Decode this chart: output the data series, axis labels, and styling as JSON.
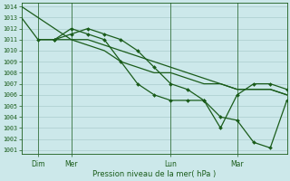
{
  "background_color": "#cce8ea",
  "grid_color": "#aacccc",
  "line_color": "#1a5c1a",
  "ylim": [
    1001,
    1014
  ],
  "yticks": [
    1001,
    1002,
    1003,
    1004,
    1005,
    1006,
    1007,
    1008,
    1009,
    1010,
    1011,
    1012,
    1013,
    1014
  ],
  "xlabel": "Pression niveau de la mer( hPa )",
  "xtick_labels": [
    "Dim",
    "Mer",
    "Lun",
    "Mar"
  ],
  "xtick_positions": [
    12,
    36,
    108,
    156
  ],
  "vline_positions": [
    12,
    36,
    108,
    156
  ],
  "xlim": [
    0,
    192
  ],
  "series": [
    {
      "x": [
        0,
        12,
        24,
        36,
        48,
        60,
        72,
        84,
        96,
        108,
        120,
        132,
        144,
        156,
        168,
        180,
        192
      ],
      "y": [
        1014,
        1013,
        1012,
        1011,
        1011,
        1010.5,
        1010,
        1009.5,
        1009,
        1008.5,
        1008,
        1007.5,
        1007,
        1006.5,
        1006.5,
        1006.5,
        1006
      ],
      "marker": false,
      "lw": 0.9
    },
    {
      "x": [
        0,
        12,
        24,
        36,
        48,
        60,
        72,
        84,
        96,
        108,
        120,
        132,
        144,
        156,
        168,
        180,
        192
      ],
      "y": [
        1013,
        1011,
        1011,
        1011,
        1010.5,
        1010,
        1009,
        1008.5,
        1008,
        1008,
        1007.5,
        1007,
        1007,
        1006.5,
        1006.5,
        1006.5,
        1006
      ],
      "marker": false,
      "lw": 0.9
    },
    {
      "x": [
        12,
        24,
        36,
        48,
        60,
        72,
        84,
        96,
        108,
        120,
        132,
        144,
        156,
        168,
        180,
        192
      ],
      "y": [
        1011,
        1011,
        1011.5,
        1012,
        1011.5,
        1011,
        1010,
        1008.5,
        1007,
        1006.5,
        1005.5,
        1004,
        1003.7,
        1001.7,
        1001.2,
        1005.5
      ],
      "marker": true,
      "lw": 0.9
    },
    {
      "x": [
        24,
        36,
        48,
        60,
        72,
        84,
        96,
        108,
        120,
        132,
        144,
        156,
        168,
        180,
        192
      ],
      "y": [
        1011,
        1012,
        1011.5,
        1011,
        1009,
        1007,
        1006,
        1005.5,
        1005.5,
        1005.5,
        1003,
        1006,
        1007,
        1007,
        1006.5
      ],
      "marker": true,
      "lw": 0.9
    }
  ]
}
